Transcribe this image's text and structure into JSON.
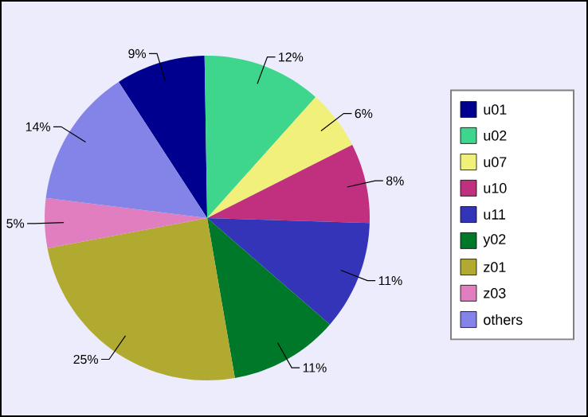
{
  "chart_data": {
    "type": "pie",
    "categories": [
      "u01",
      "u02",
      "u07",
      "u10",
      "u11",
      "y02",
      "z01",
      "z03",
      "others"
    ],
    "values": [
      9,
      12,
      6,
      8,
      11,
      11,
      25,
      5,
      14
    ],
    "value_labels": [
      "9%",
      "12%",
      "6%",
      "8%",
      "11%",
      "11%",
      "25%",
      "5%",
      "14%"
    ],
    "colors": [
      "#00008f",
      "#3dd68c",
      "#f0f07a",
      "#c0307e",
      "#3434b8",
      "#00782a",
      "#b0aa30",
      "#e07ec0",
      "#8484e8"
    ],
    "legend": "right"
  }
}
